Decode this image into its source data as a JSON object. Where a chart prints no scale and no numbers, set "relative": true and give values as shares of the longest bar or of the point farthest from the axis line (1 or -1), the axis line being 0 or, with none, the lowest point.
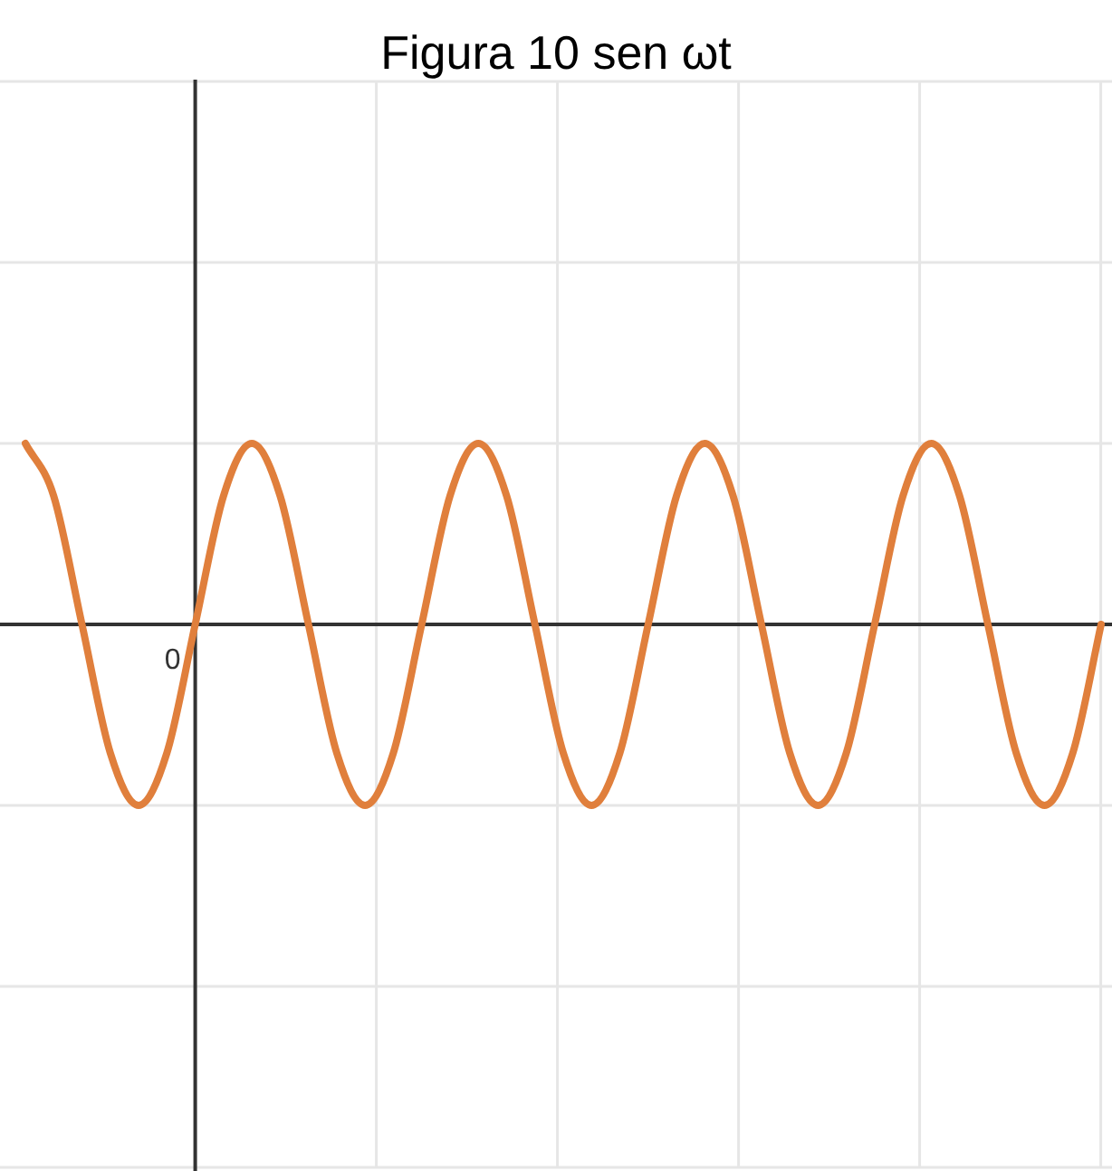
{
  "chart_data": {
    "type": "line",
    "title": "Figura 10 sen ωt",
    "relative": true,
    "grid": true,
    "legend": false,
    "marker": "none",
    "line_style": "solid",
    "annotations": [
      "0"
    ],
    "categories": [
      null,
      null,
      null,
      null,
      null,
      null,
      null,
      null,
      null,
      null,
      null,
      null,
      null,
      null,
      null,
      null,
      null,
      null,
      null,
      null,
      null,
      null,
      null,
      null,
      null,
      null,
      null,
      null,
      null,
      null,
      null,
      null,
      null,
      null,
      null,
      null,
      null,
      null,
      null
    ],
    "series": [
      {
        "color": "#e07f3c",
        "values": [
          1,
          0.71,
          0,
          -0.71,
          -1,
          -0.71,
          0,
          0.71,
          1,
          0.71,
          0,
          -0.71,
          -1,
          -0.71,
          0,
          0.71,
          1,
          0.71,
          0,
          -0.71,
          -1,
          -0.71,
          0,
          0.71,
          1,
          0.71,
          0,
          -0.71,
          -1,
          -0.71,
          0,
          0.71,
          1,
          0.71,
          0,
          -0.71,
          -1,
          -0.71,
          0
        ]
      }
    ]
  }
}
